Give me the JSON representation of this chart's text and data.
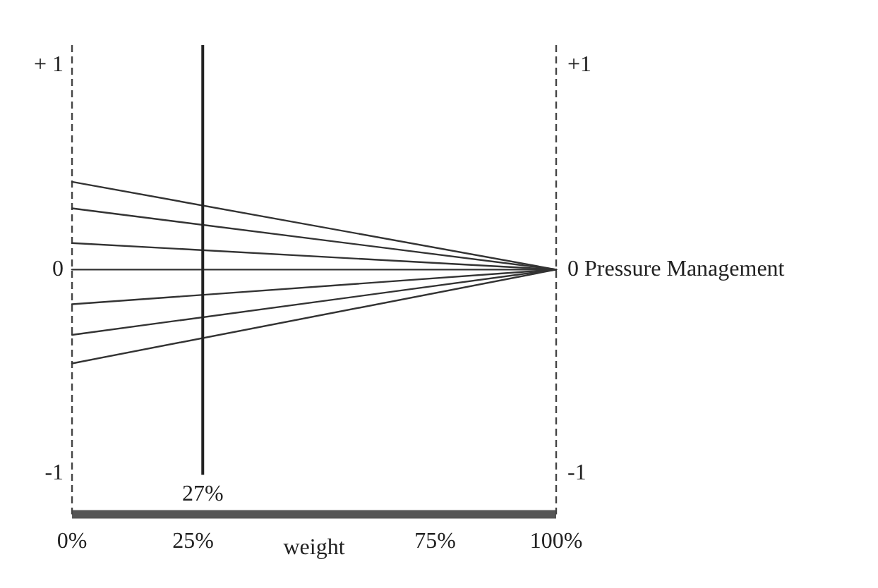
{
  "chart_data": {
    "type": "line",
    "xlabel": "weight",
    "x": [
      0,
      100
    ],
    "series": [
      {
        "color": "#333333",
        "values": [
          0.43,
          0
        ]
      },
      {
        "color": "#333333",
        "values": [
          0.3,
          0
        ]
      },
      {
        "color": "#333333",
        "values": [
          0.13,
          0
        ]
      },
      {
        "color": "#333333",
        "values": [
          0,
          0
        ]
      },
      {
        "color": "#333333",
        "values": [
          -0.17,
          0
        ]
      },
      {
        "color": "#333333",
        "values": [
          -0.32,
          0
        ]
      },
      {
        "color": "#333333",
        "values": [
          -0.46,
          0
        ]
      }
    ],
    "xlim": [
      0,
      100
    ],
    "xticks": [
      {
        "value": 0,
        "label": "0%"
      },
      {
        "value": 25,
        "label": "25%"
      },
      {
        "value": 75,
        "label": "75%"
      },
      {
        "value": 100,
        "label": "100%"
      }
    ],
    "ylim": [
      -1.2,
      1.1
    ],
    "yticks": [
      {
        "value": -1,
        "label": "-1"
      },
      0,
      {
        "value": 1,
        "label": "+ 1"
      }
    ],
    "y2lim": [
      -1.2,
      1.1
    ],
    "y2ticks": [
      {
        "value": -1,
        "label": "-1"
      },
      {
        "value": 0,
        "label": "0 Pressure Management"
      },
      {
        "value": 1,
        "label": "+1"
      }
    ],
    "ref_lines": [
      {
        "axis": "x",
        "value": 27,
        "label": "27%",
        "color": "#222222"
      }
    ],
    "grid": false,
    "legend": false,
    "marker": "none",
    "line_style": "solid"
  }
}
